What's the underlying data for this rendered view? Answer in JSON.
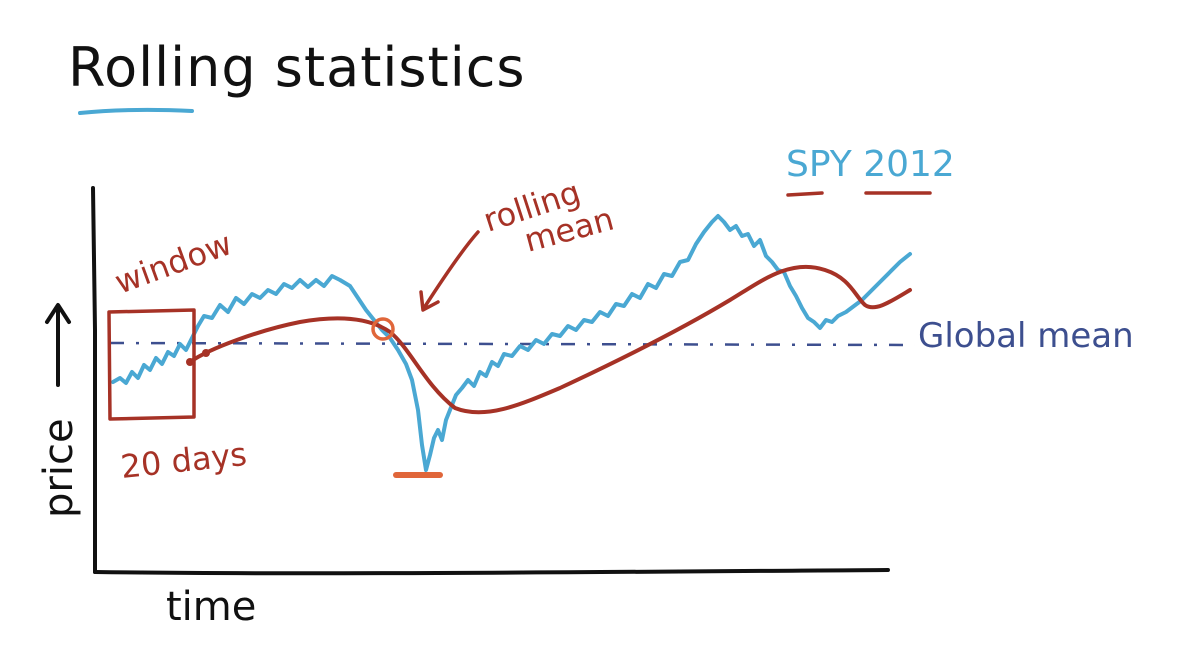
{
  "title": "Rolling statistics",
  "axes": {
    "x_label": "time",
    "y_label": "price"
  },
  "annotations": {
    "series_label": "SPY 2012",
    "window_label": "window",
    "window_size_label": "20 days",
    "rolling_mean_line1": "rolling",
    "rolling_mean_line2": "mean",
    "global_mean_label": "Global mean"
  },
  "colors": {
    "ink": "#111111",
    "price": "#4aa8d3",
    "rolling_mean": "#a63226",
    "global_mean": "#3d4f8f",
    "highlight": "#e0663a"
  }
}
